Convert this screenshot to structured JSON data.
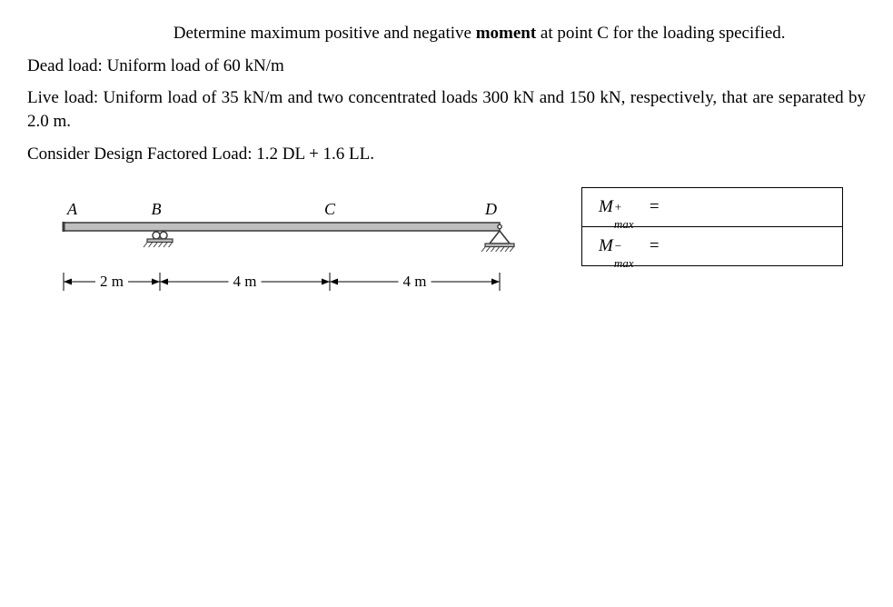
{
  "text": {
    "p1_lead": "Determine maximum positive and negative ",
    "p1_bold": "moment",
    "p1_tail": " at point C for the loading specified.",
    "p2": "Dead load: Uniform load of 60 kN/m",
    "p3": "Live load: Uniform load of 35 kN/m and two concentrated loads 300 kN and 150 kN, respectively, that are separated by 2.0 m.",
    "p4": "Consider Design Factored Load: 1.2 DL + 1.6 LL."
  },
  "diagram": {
    "labels": {
      "A": "A",
      "B": "B",
      "C": "C",
      "D": "D"
    },
    "dims": {
      "d1": "2 m",
      "d2": "4 m",
      "d3": "4 m"
    },
    "geometry": {
      "xA": 30,
      "xB": 136,
      "xC": 323,
      "xD": 510,
      "beamY": 45,
      "beamH": 9,
      "dimY": 110,
      "colors": {
        "beamFill": "#bfbfbf",
        "beamStroke": "#3a3a3a",
        "label": "#000",
        "dim": "#000"
      },
      "font": {
        "label": 18,
        "dim": 17
      }
    }
  },
  "answers": {
    "row1_prefix": "M",
    "row1_sup": "+",
    "row1_sub": "max",
    "row1_eq": " =",
    "row2_prefix": "M",
    "row2_sup": "−",
    "row2_sub": "max",
    "row2_eq": " ="
  }
}
